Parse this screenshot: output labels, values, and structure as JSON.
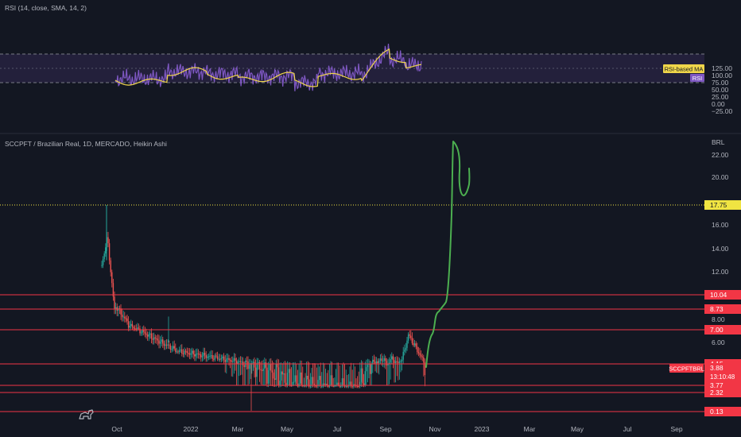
{
  "rsi_panel": {
    "title": "RSI (14, close, SMA, 14, 2)",
    "yaxis_ticks": [
      125,
      100,
      75,
      50,
      25,
      0,
      -25
    ],
    "yaxis_labels": [
      "125.00",
      "100.00",
      "75.00",
      "50.00",
      "25.00",
      "0.00",
      "−25.00"
    ],
    "band_upper": 70,
    "band_middle": 50,
    "band_lower": 30,
    "badges": [
      {
        "label": "RSI-based MA",
        "color": "#f0d64a",
        "text_color": "#131722"
      },
      {
        "label": "RSI",
        "color": "#7e57c2",
        "text_color": "#ffffff"
      }
    ],
    "colors": {
      "rsi": "#7e57c2",
      "ma": "#f0d64a",
      "band_fill": "#2a2444"
    }
  },
  "price_panel": {
    "title": "SCCPFT / Brazilian Real, 1D, MERCADO, Heikin Ashi",
    "currency": "BRL",
    "yaxis_ticks": [
      22,
      20,
      16,
      14,
      12,
      8,
      6
    ],
    "yaxis_labels": [
      "22.00",
      "20.00",
      "16.00",
      "14.00",
      "12.00",
      "8.00",
      "6.00"
    ],
    "horizontal_levels": [
      {
        "value": 17.75,
        "label": "17.75",
        "color": "#f0e442",
        "text_color": "#131722",
        "style": "dotted"
      },
      {
        "value": 10.04,
        "label": "10.04",
        "color": "#f23645",
        "text_color": "#ffffff",
        "style": "solid"
      },
      {
        "value": 8.73,
        "label": "8.73",
        "color": "#f23645",
        "text_color": "#ffffff",
        "style": "solid"
      },
      {
        "value": 7.0,
        "label": "7.00",
        "color": "#f23645",
        "text_color": "#ffffff",
        "style": "solid"
      },
      {
        "value": 4.15,
        "label": "4.15",
        "color": "#f23645",
        "text_color": "#ffffff",
        "style": "solid"
      },
      {
        "value": 3.77,
        "label": "3.77",
        "color": "#f23645",
        "text_color": "#ffffff",
        "style": "solid"
      },
      {
        "value": 2.32,
        "label": "2.32",
        "color": "#f23645",
        "text_color": "#ffffff",
        "style": "solid"
      },
      {
        "value": 0.13,
        "label": "0.13",
        "color": "#f23645",
        "text_color": "#ffffff",
        "style": "solid"
      }
    ],
    "last_price": {
      "symbol": "SCCPFTBRL",
      "price": "3.88",
      "countdown": "13:10:48",
      "color": "#f23645"
    },
    "colors": {
      "up": "#26a69a",
      "down": "#ef5350",
      "projection": "#4caf50"
    }
  },
  "time_axis": {
    "labels": [
      "Oct",
      "2022",
      "Mar",
      "May",
      "Jul",
      "Sep",
      "Nov",
      "2023",
      "Mar",
      "May",
      "Jul",
      "Sep"
    ]
  },
  "logo": {
    "name": "tradingview-dinosaur-icon"
  }
}
